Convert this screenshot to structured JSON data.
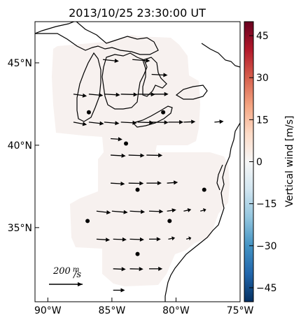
{
  "title": "2013/10/25 23:30:00 UT",
  "map": {
    "lon_range": [
      -91,
      -75
    ],
    "lat_range": [
      30.5,
      47.5
    ],
    "lon_ticks": [
      {
        "value": -90,
        "label": "90°W"
      },
      {
        "value": -85,
        "label": "85°W"
      },
      {
        "value": -80,
        "label": "80°W"
      },
      {
        "value": -75,
        "label": "75°W"
      }
    ],
    "lat_ticks": [
      {
        "value": 45,
        "label": "45°N"
      },
      {
        "value": 40,
        "label": "40°N"
      },
      {
        "value": 35,
        "label": "35°N"
      }
    ],
    "colors": {
      "coast": "#000000",
      "vertical_wind_fill": "#f7f1ef",
      "arrow": "#000000",
      "station": "#000000"
    }
  },
  "colorbar": {
    "label": "Vertical wind [m/s]",
    "range": [
      -50,
      50
    ],
    "ticks": [
      {
        "value": 45,
        "label": "45"
      },
      {
        "value": 30,
        "label": "30"
      },
      {
        "value": 15,
        "label": "15"
      },
      {
        "value": 0,
        "label": "0"
      },
      {
        "value": -15,
        "label": "−15"
      },
      {
        "value": -30,
        "label": "−30"
      },
      {
        "value": -45,
        "label": "−45"
      }
    ],
    "colormap": [
      "#053061",
      "#2166ac",
      "#4393c3",
      "#92c5de",
      "#d1e5f0",
      "#f7f7f7",
      "#fddbc7",
      "#f4a582",
      "#d6604d",
      "#b2182b",
      "#67001f"
    ]
  },
  "scale": {
    "value_label": "200",
    "unit_label": "m/s"
  },
  "chart_data": {
    "type": "vector-field",
    "title": "2013/10/25 23:30:00 UT",
    "colorbar_label": "Vertical wind [m/s]",
    "reference_vector_mps": 200,
    "vertical_wind_mps_approx": 0,
    "stations": [
      {
        "lon": -86.8,
        "lat": 42.0
      },
      {
        "lon": -81.0,
        "lat": 42.0
      },
      {
        "lon": -83.9,
        "lat": 40.1
      },
      {
        "lon": -83.0,
        "lat": 37.3
      },
      {
        "lon": -77.8,
        "lat": 37.3
      },
      {
        "lon": -86.9,
        "lat": 35.4
      },
      {
        "lon": -80.5,
        "lat": 35.4
      },
      {
        "lon": -83.0,
        "lat": 33.4
      }
    ],
    "vectors": [
      {
        "lon": -85.7,
        "lat": 45.2,
        "u": 95,
        "v": -10
      },
      {
        "lon": -83.4,
        "lat": 45.2,
        "u": 105,
        "v": -8
      },
      {
        "lon": -81.9,
        "lat": 44.3,
        "u": 95,
        "v": -5
      },
      {
        "lon": -88.0,
        "lat": 43.1,
        "u": 80,
        "v": -12
      },
      {
        "lon": -86.8,
        "lat": 43.1,
        "u": 85,
        "v": -8
      },
      {
        "lon": -85.6,
        "lat": 43.1,
        "u": 95,
        "v": -5
      },
      {
        "lon": -84.3,
        "lat": 43.1,
        "u": 100,
        "v": -3
      },
      {
        "lon": -83.0,
        "lat": 43.1,
        "u": 105,
        "v": -2
      },
      {
        "lon": -81.9,
        "lat": 43.1,
        "u": 100,
        "v": 0
      },
      {
        "lon": -88.0,
        "lat": 41.4,
        "u": 80,
        "v": -15
      },
      {
        "lon": -86.8,
        "lat": 41.4,
        "u": 90,
        "v": -10
      },
      {
        "lon": -85.6,
        "lat": 41.4,
        "u": 90,
        "v": -8
      },
      {
        "lon": -84.3,
        "lat": 41.4,
        "u": 95,
        "v": -5
      },
      {
        "lon": -83.0,
        "lat": 41.4,
        "u": 95,
        "v": -3
      },
      {
        "lon": -81.9,
        "lat": 41.4,
        "u": 100,
        "v": -2
      },
      {
        "lon": -80.6,
        "lat": 41.4,
        "u": 90,
        "v": 0
      },
      {
        "lon": -79.4,
        "lat": 41.4,
        "u": 70,
        "v": 3
      },
      {
        "lon": -77.0,
        "lat": 41.4,
        "u": 55,
        "v": 5
      },
      {
        "lon": -85.1,
        "lat": 40.4,
        "u": 70,
        "v": -5
      },
      {
        "lon": -85.1,
        "lat": 39.4,
        "u": 90,
        "v": -5
      },
      {
        "lon": -83.7,
        "lat": 39.4,
        "u": 95,
        "v": -3
      },
      {
        "lon": -82.3,
        "lat": 39.4,
        "u": 95,
        "v": -2
      },
      {
        "lon": -85.1,
        "lat": 37.7,
        "u": 85,
        "v": -5
      },
      {
        "lon": -83.7,
        "lat": 37.7,
        "u": 90,
        "v": -2
      },
      {
        "lon": -82.3,
        "lat": 37.7,
        "u": 90,
        "v": 0
      },
      {
        "lon": -80.7,
        "lat": 37.7,
        "u": 65,
        "v": 5
      },
      {
        "lon": -86.2,
        "lat": 36.0,
        "u": 85,
        "v": -10
      },
      {
        "lon": -85.0,
        "lat": 36.0,
        "u": 95,
        "v": -8
      },
      {
        "lon": -83.6,
        "lat": 36.0,
        "u": 90,
        "v": -5
      },
      {
        "lon": -82.1,
        "lat": 36.0,
        "u": 85,
        "v": -3
      },
      {
        "lon": -80.7,
        "lat": 36.0,
        "u": 55,
        "v": 8
      },
      {
        "lon": -79.4,
        "lat": 36.0,
        "u": 45,
        "v": 10
      },
      {
        "lon": -78.1,
        "lat": 36.0,
        "u": 35,
        "v": 10
      },
      {
        "lon": -86.2,
        "lat": 34.3,
        "u": 80,
        "v": -5
      },
      {
        "lon": -84.9,
        "lat": 34.3,
        "u": 80,
        "v": -3
      },
      {
        "lon": -83.6,
        "lat": 34.3,
        "u": 85,
        "v": -3
      },
      {
        "lon": -82.1,
        "lat": 34.3,
        "u": 70,
        "v": 0
      },
      {
        "lon": -80.6,
        "lat": 34.3,
        "u": 40,
        "v": 8
      },
      {
        "lon": -79.2,
        "lat": 34.3,
        "u": 30,
        "v": 8
      },
      {
        "lon": -84.9,
        "lat": 32.5,
        "u": 75,
        "v": -3
      },
      {
        "lon": -83.6,
        "lat": 32.5,
        "u": 80,
        "v": -2
      },
      {
        "lon": -82.1,
        "lat": 32.5,
        "u": 80,
        "v": 0
      },
      {
        "lon": -84.9,
        "lat": 31.2,
        "u": 70,
        "v": 0
      }
    ]
  }
}
